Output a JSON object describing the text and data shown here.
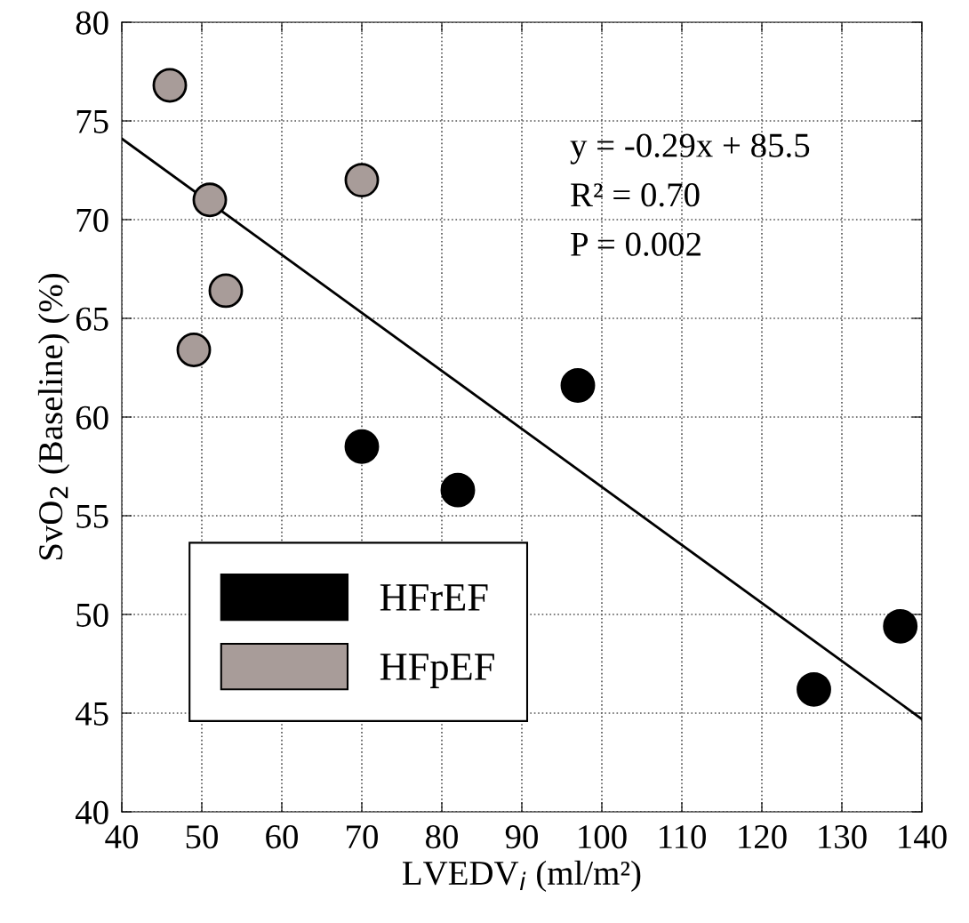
{
  "chart_data": {
    "type": "scatter",
    "xlabel": "LVEDV$_{i}$ (ml/m²)",
    "ylabel": "SvO$_{2}$ (Baseline) (%)",
    "xlim": [
      40,
      140
    ],
    "xticks": [
      40,
      50,
      60,
      70,
      80,
      90,
      100,
      110,
      120,
      130,
      140
    ],
    "ylim": [
      40,
      80
    ],
    "yticks": [
      40,
      45,
      50,
      55,
      60,
      65,
      70,
      75,
      80
    ],
    "grid": true,
    "legend": "bottom left",
    "marker": "circle",
    "annotations": [
      "y = -0.29x + 85.5",
      "R² = 0.70",
      "P = 0.002"
    ],
    "series": [
      {
        "name": "HFrEF",
        "color": "#000000",
        "x": [
          70,
          82,
          97,
          126.5,
          137.3
        ],
        "values": [
          58.5,
          56.3,
          61.6,
          46.2,
          49.4
        ]
      },
      {
        "name": "HFpEF",
        "color": "#a89c99",
        "x": [
          46,
          51,
          70,
          53,
          49
        ],
        "values": [
          76.8,
          71.0,
          72.0,
          66.4,
          63.4
        ]
      },
      {
        "type": "line",
        "marker": "none",
        "color": "#000000",
        "x": [
          40,
          140
        ],
        "values": [
          74.1,
          44.7
        ]
      }
    ]
  }
}
